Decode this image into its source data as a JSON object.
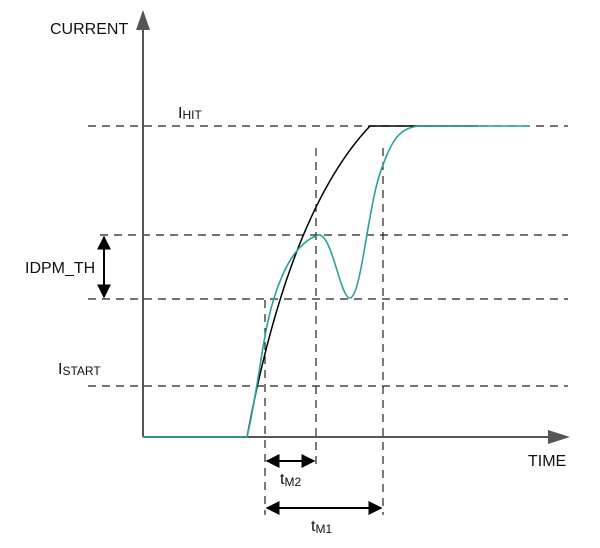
{
  "axes": {
    "y_label": "CURRENT",
    "x_label": "TIME"
  },
  "levels": {
    "hit": {
      "main": "I",
      "sub": "HIT"
    },
    "idpm": "IDPM_TH",
    "start": {
      "main": "I",
      "sub": "START"
    }
  },
  "intervals": {
    "tm2": {
      "main": "t",
      "sub": "M2"
    },
    "tm1": {
      "main": "t",
      "sub": "M1"
    }
  }
}
